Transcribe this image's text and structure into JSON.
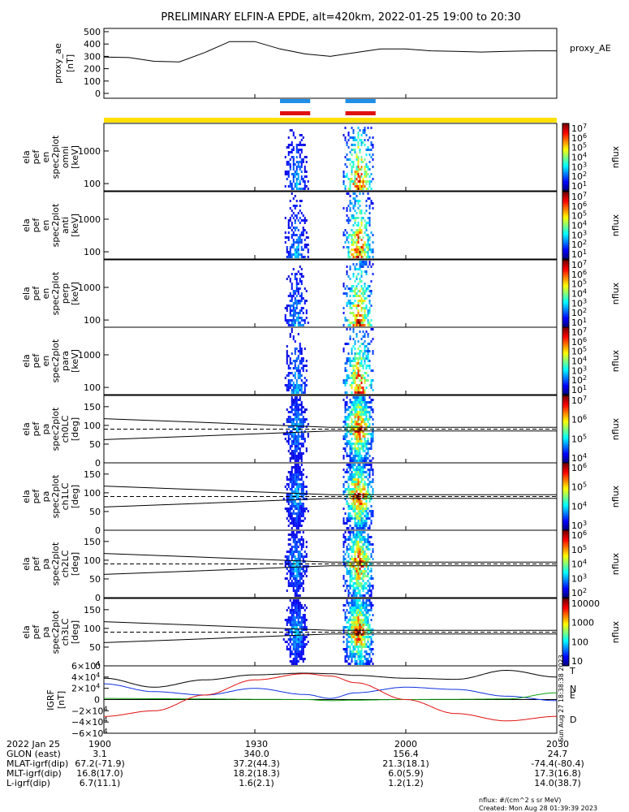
{
  "title": "PRELIMINARY ELFIN-A EPDE, alt=420km, 2022-01-25 19:00 to 20:30",
  "colors": {
    "blue_bar": "#1f8fe8",
    "red_bar": "#e01010",
    "yellow_bar": "#ffe000"
  },
  "panels": [
    {
      "ylabel": [
        "proxy_ae",
        "[nT]"
      ],
      "legend": "proxy_AE",
      "ticks": [
        "500",
        "400",
        "300",
        "200",
        "100",
        "0"
      ]
    },
    {
      "ylabel": [
        "ela",
        "pef",
        "en",
        "spec2plot",
        "omni",
        "[keV]"
      ],
      "ticks": [
        "1000",
        "100"
      ],
      "cbar_ticks": [
        "10^7",
        "10^6",
        "10^5",
        "10^4",
        "10^3",
        "10^2",
        "10^1"
      ],
      "cbar_label": "nflux"
    },
    {
      "ylabel": [
        "ela",
        "pef",
        "en",
        "spec2plot",
        "anti",
        "[keV]"
      ],
      "ticks": [
        "1000",
        "100"
      ],
      "cbar_ticks": [
        "10^7",
        "10^6",
        "10^5",
        "10^4",
        "10^3",
        "10^2",
        "10^1"
      ],
      "cbar_label": "nflux"
    },
    {
      "ylabel": [
        "ela",
        "pef",
        "en",
        "spec2plot",
        "perp",
        "[keV]"
      ],
      "ticks": [
        "1000",
        "100"
      ],
      "cbar_ticks": [
        "10^7",
        "10^6",
        "10^5",
        "10^4",
        "10^3",
        "10^2",
        "10^1"
      ],
      "cbar_label": "nflux"
    },
    {
      "ylabel": [
        "ela",
        "pef",
        "en",
        "spec2plot",
        "para",
        "[keV]"
      ],
      "ticks": [
        "1000",
        "100"
      ],
      "cbar_ticks": [
        "10^7",
        "10^6",
        "10^5",
        "10^4",
        "10^3",
        "10^2",
        "10^1"
      ],
      "cbar_label": "nflux"
    },
    {
      "ylabel": [
        "ela",
        "pef",
        "pa",
        "spec2plot",
        "ch0LC",
        "[deg]"
      ],
      "ticks": [
        "150",
        "100",
        "50",
        "0"
      ],
      "cbar_ticks": [
        "10^7",
        "10^6",
        "10^5",
        "10^4"
      ],
      "cbar_label": "nflux"
    },
    {
      "ylabel": [
        "ela",
        "pef",
        "pa",
        "spec2plot",
        "ch1LC",
        "[deg]"
      ],
      "ticks": [
        "150",
        "100",
        "50",
        "0"
      ],
      "cbar_ticks": [
        "10^6",
        "10^5",
        "10^4",
        "10^3"
      ],
      "cbar_label": "nflux"
    },
    {
      "ylabel": [
        "ela",
        "pef",
        "pa",
        "spec2plot",
        "ch2LC",
        "[deg]"
      ],
      "ticks": [
        "150",
        "100",
        "50",
        "0"
      ],
      "cbar_ticks": [
        "10^6",
        "10^5",
        "10^4",
        "10^3",
        "10^2"
      ],
      "cbar_label": "nflux"
    },
    {
      "ylabel": [
        "ela",
        "pef",
        "pa",
        "spec2plot",
        "ch3LC",
        "[deg]"
      ],
      "ticks": [
        "150",
        "100",
        "50",
        "0"
      ],
      "cbar_ticks": [
        "10000",
        "1000",
        "100",
        "10"
      ],
      "cbar_label": "nflux"
    },
    {
      "ylabel": [
        "IGRF",
        "[nT]"
      ],
      "ticks": [
        "6×10^4",
        "4×10^4",
        "2×10^4",
        "0",
        "−2×10^4",
        "−4×10^4",
        "−6×10^4"
      ],
      "components": [
        "T",
        "N",
        "E",
        "D"
      ]
    }
  ],
  "footer": {
    "rows": [
      [
        "2022 Jan 25",
        "1900",
        "1930",
        "2000",
        "2030"
      ],
      [
        "GLON (east)",
        "3.1",
        "340.0",
        "156.4",
        "24.7"
      ],
      [
        "MLAT-igrf(dip)",
        "67.2(-71.9)",
        "37.2(44.3)",
        "21.3(18.1)",
        "-74.4(-80.4)"
      ],
      [
        "MLT-igrf(dip)",
        "16.8(17.0)",
        "18.2(18.3)",
        "6.0(5.9)",
        "17.3(16.8)"
      ],
      [
        "L-igrf(dip)",
        "6.7(11.1)",
        "1.6(2.1)",
        "1.2(1.2)",
        "14.0(38.7)"
      ]
    ],
    "units_note": "nflux: #/(cm^2 s sr MeV)",
    "created": "Created: Mon Aug 28 01:39:39 2023",
    "side_stamp": "Sun Aug 27 18:38:38 2023"
  },
  "chart_data": {
    "type": "line",
    "title": "PRELIMINARY ELFIN-A EPDE, alt=420km, 2022-01-25 19:00 to 20:30",
    "x_range": [
      "19:00",
      "20:30"
    ],
    "x_ticks": [
      "1900",
      "1930",
      "2000",
      "2030"
    ],
    "proxy_ae": {
      "ylabel": "proxy_ae [nT]",
      "ylim": [
        0,
        500
      ],
      "legend": "proxy_AE",
      "t": [
        0,
        5,
        10,
        15,
        20,
        25,
        30,
        35,
        40,
        45,
        50,
        55,
        60,
        65,
        70,
        75,
        80,
        85,
        90
      ],
      "values": [
        295,
        290,
        260,
        255,
        330,
        420,
        420,
        360,
        320,
        300,
        330,
        360,
        360,
        345,
        340,
        335,
        340,
        345,
        345
      ]
    },
    "science_zones": [
      {
        "start_min": 35,
        "end_min": 41,
        "color": "blue/red"
      },
      {
        "start_min": 48,
        "end_min": 54,
        "color": "blue/red"
      }
    ],
    "spectrogram_energy_range_keV": [
      60,
      7000
    ],
    "pitch_angle_range_deg": [
      0,
      180
    ],
    "igrf": {
      "ylabel": "IGRF [nT]",
      "ylim": [
        -60000,
        60000
      ],
      "t": [
        0,
        10,
        20,
        30,
        40,
        45,
        50,
        60,
        70,
        80,
        90
      ],
      "T": [
        38000,
        22000,
        35000,
        44000,
        47000,
        46000,
        43000,
        38000,
        36000,
        52000,
        40000
      ],
      "N": [
        28000,
        14000,
        8000,
        20000,
        9000,
        2000,
        12000,
        22000,
        18000,
        6000,
        -2000
      ],
      "E": [
        2000,
        1500,
        1000,
        500,
        0,
        -2000,
        -1000,
        0,
        500,
        1000,
        12000
      ],
      "D": [
        -30000,
        -20000,
        8000,
        35000,
        46000,
        42000,
        30000,
        0,
        -25000,
        -38000,
        -30000
      ]
    }
  }
}
